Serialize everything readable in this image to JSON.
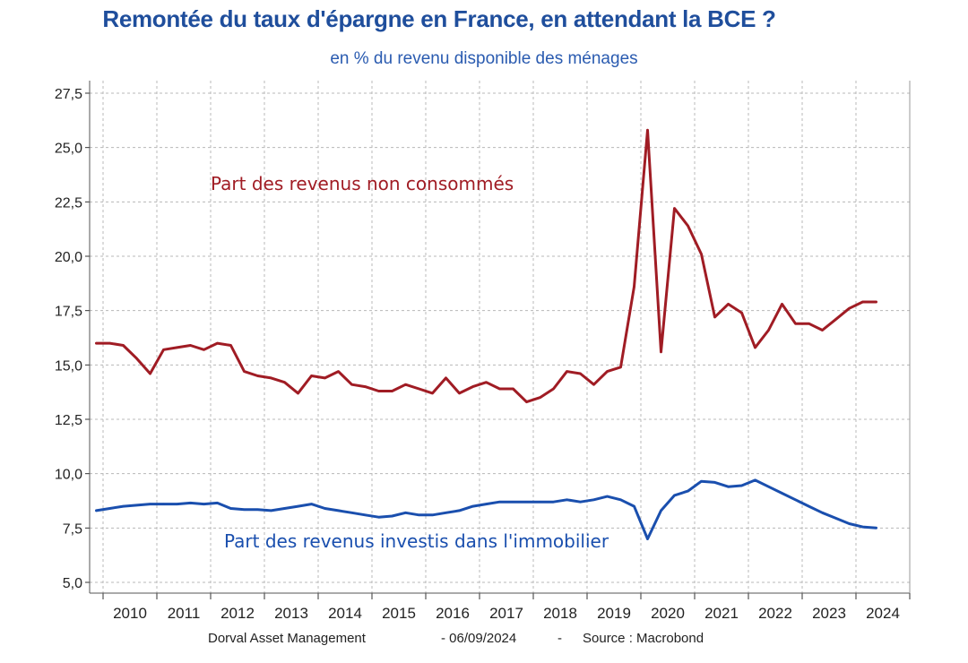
{
  "chart_data": {
    "type": "line",
    "title": "Remontée du taux d'épargne en France, en attendant la BCE ?",
    "subtitle": "en % du revenu disponible des ménages",
    "ylim": [
      5.0,
      27.5
    ],
    "yticks": [
      "5,0",
      "7,5",
      "10,0",
      "12,5",
      "15,0",
      "17,5",
      "20,0",
      "22,5",
      "25,0",
      "27,5"
    ],
    "ytick_values": [
      5.0,
      7.5,
      10.0,
      12.5,
      15.0,
      17.5,
      20.0,
      22.5,
      25.0,
      27.5
    ],
    "x_range": [
      2009.75,
      2025.0
    ],
    "x_labels": [
      "2010",
      "2011",
      "2012",
      "2013",
      "2014",
      "2015",
      "2016",
      "2017",
      "2018",
      "2019",
      "2020",
      "2021",
      "2022",
      "2023",
      "2024"
    ],
    "grid": true,
    "series": [
      {
        "name": "Part des revenus non consommés",
        "color": "#a01c24",
        "x": [
          2009.875,
          2010.125,
          2010.375,
          2010.625,
          2010.875,
          2011.125,
          2011.375,
          2011.625,
          2011.875,
          2012.125,
          2012.375,
          2012.625,
          2012.875,
          2013.125,
          2013.375,
          2013.625,
          2013.875,
          2014.125,
          2014.375,
          2014.625,
          2014.875,
          2015.125,
          2015.375,
          2015.625,
          2015.875,
          2016.125,
          2016.375,
          2016.625,
          2016.875,
          2017.125,
          2017.375,
          2017.625,
          2017.875,
          2018.125,
          2018.375,
          2018.625,
          2018.875,
          2019.125,
          2019.375,
          2019.625,
          2019.875,
          2020.125,
          2020.375,
          2020.625,
          2020.875,
          2021.125,
          2021.375,
          2021.625,
          2021.875,
          2022.125,
          2022.375,
          2022.625,
          2022.875,
          2023.125,
          2023.375,
          2023.625,
          2023.875,
          2024.125,
          2024.375
        ],
        "values": [
          16.0,
          16.0,
          15.9,
          15.3,
          14.6,
          15.7,
          15.8,
          15.9,
          15.7,
          16.0,
          15.9,
          14.7,
          14.5,
          14.4,
          14.2,
          13.7,
          14.5,
          14.4,
          14.7,
          14.1,
          14.0,
          13.8,
          13.8,
          14.1,
          13.9,
          13.7,
          14.4,
          13.7,
          14.0,
          14.2,
          13.9,
          13.9,
          13.3,
          13.5,
          13.9,
          14.7,
          14.6,
          14.1,
          14.7,
          14.9,
          18.6,
          25.8,
          15.6,
          22.2,
          21.4,
          20.1,
          17.2,
          17.8,
          17.4,
          15.8,
          16.6,
          17.8,
          16.9,
          16.9,
          16.6,
          17.1,
          17.6,
          17.9,
          17.9
        ]
      },
      {
        "name": "Part des revenus investis dans l'immobilier",
        "color": "#1a4fae",
        "x": [
          2009.875,
          2010.125,
          2010.375,
          2010.625,
          2010.875,
          2011.125,
          2011.375,
          2011.625,
          2011.875,
          2012.125,
          2012.375,
          2012.625,
          2012.875,
          2013.125,
          2013.375,
          2013.625,
          2013.875,
          2014.125,
          2014.375,
          2014.625,
          2014.875,
          2015.125,
          2015.375,
          2015.625,
          2015.875,
          2016.125,
          2016.375,
          2016.625,
          2016.875,
          2017.125,
          2017.375,
          2017.625,
          2017.875,
          2018.125,
          2018.375,
          2018.625,
          2018.875,
          2019.125,
          2019.375,
          2019.625,
          2019.875,
          2020.125,
          2020.375,
          2020.625,
          2020.875,
          2021.125,
          2021.375,
          2021.625,
          2021.875,
          2022.125,
          2022.375,
          2022.625,
          2022.875,
          2023.125,
          2023.375,
          2023.625,
          2023.875,
          2024.125,
          2024.375
        ],
        "values": [
          8.3,
          8.4,
          8.5,
          8.55,
          8.6,
          8.6,
          8.6,
          8.65,
          8.6,
          8.65,
          8.4,
          8.35,
          8.35,
          8.3,
          8.4,
          8.5,
          8.6,
          8.4,
          8.3,
          8.2,
          8.1,
          8.0,
          8.05,
          8.2,
          8.1,
          8.1,
          8.2,
          8.3,
          8.5,
          8.6,
          8.7,
          8.7,
          8.7,
          8.7,
          8.7,
          8.8,
          8.7,
          8.8,
          8.95,
          8.8,
          8.5,
          7.0,
          8.3,
          9.0,
          9.2,
          9.65,
          9.6,
          9.4,
          9.45,
          9.7,
          9.4,
          9.1,
          8.8,
          8.5,
          8.2,
          7.95,
          7.7,
          7.55,
          7.5
        ]
      }
    ],
    "annotations": [
      {
        "text": "Part des revenus non consommés",
        "color": "#a01c24",
        "at_x": 2012.0,
        "at_y": 23.05
      },
      {
        "text": "Part des revenus investis dans l'immobilier",
        "color": "#1a4fae",
        "at_x": 2012.25,
        "at_y": 6.6
      }
    ]
  },
  "footer": {
    "org": "Dorval Asset Management",
    "date": "- 06/09/2024",
    "sep": "-",
    "source": "Source : Macrobond"
  }
}
